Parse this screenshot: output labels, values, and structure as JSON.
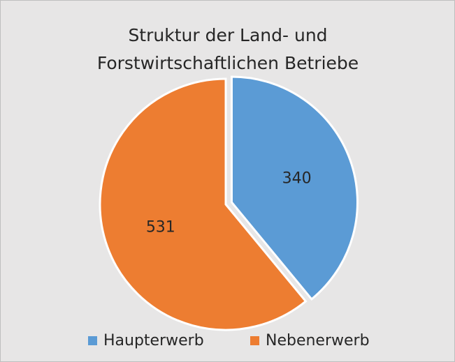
{
  "chart_data": {
    "type": "pie",
    "title": "Struktur der Land- und Forstwirtschaftlichen Betriebe",
    "categories": [
      "Haupterwerb",
      "Nebenerwerb"
    ],
    "values": [
      340,
      531
    ],
    "colors": [
      "#5b9bd5",
      "#ed7d31"
    ],
    "legend": "bottom"
  }
}
